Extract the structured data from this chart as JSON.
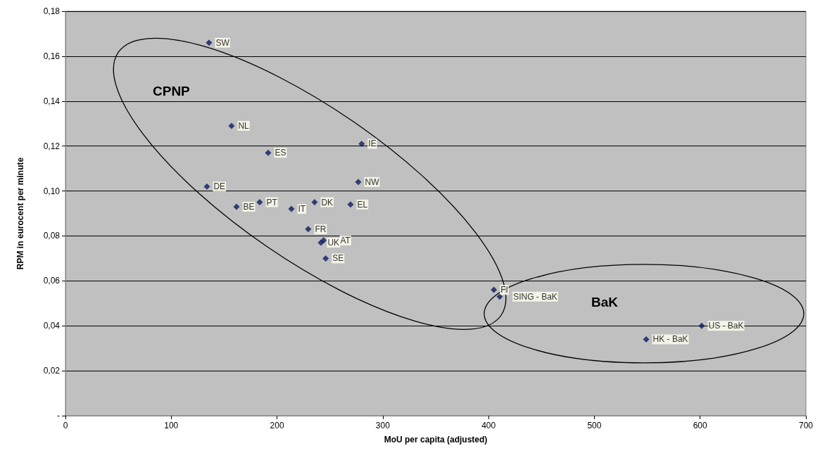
{
  "chart_data": {
    "type": "scatter",
    "xlabel": "MoU per capita (adjusted)",
    "ylabel": "RPM in eurocent per minute",
    "x": [
      135.7,
      157,
      191.6,
      280,
      133.7,
      276.8,
      161.7,
      183.6,
      213.6,
      235.5,
      269.5,
      229.5,
      241.5,
      244,
      246,
      405,
      410.5,
      601.5,
      549
    ],
    "values": [
      0.166,
      0.129,
      0.117,
      0.121,
      0.102,
      0.104,
      0.093,
      0.095,
      0.092,
      0.095,
      0.094,
      0.083,
      0.077,
      0.078,
      0.07,
      0.056,
      0.053,
      0.04,
      0.034
    ],
    "value_labels": [
      "SW",
      "NL",
      "ES",
      "IE",
      "DE",
      "NW",
      "BE",
      "PT",
      "IT",
      "DK",
      "EL",
      "FR",
      "UK",
      "AT",
      "SE",
      "FI",
      "SING - BaK",
      "US - BaK",
      "HK - BaK"
    ],
    "color": "#0b1a5e",
    "marker": "diamond",
    "grid": "y",
    "xlim": [
      0,
      700
    ],
    "xticks": [
      0,
      100,
      200,
      300,
      400,
      500,
      600,
      700
    ],
    "ylim": [
      0,
      0.18
    ],
    "yticks": [
      {
        "value": 0,
        "label": "-"
      },
      {
        "value": 0.02,
        "label": "0,02"
      },
      {
        "value": 0.04,
        "label": "0,04"
      },
      {
        "value": 0.06,
        "label": "0,06"
      },
      {
        "value": 0.08,
        "label": "0,08"
      },
      {
        "value": 0.1,
        "label": "0,10"
      },
      {
        "value": 0.12,
        "label": "0,12"
      },
      {
        "value": 0.14,
        "label": "0,14"
      },
      {
        "value": 0.16,
        "label": "0,16"
      },
      {
        "value": 0.18,
        "label": "0,18"
      }
    ],
    "annotations": [
      "CPNP",
      "BaK"
    ]
  }
}
